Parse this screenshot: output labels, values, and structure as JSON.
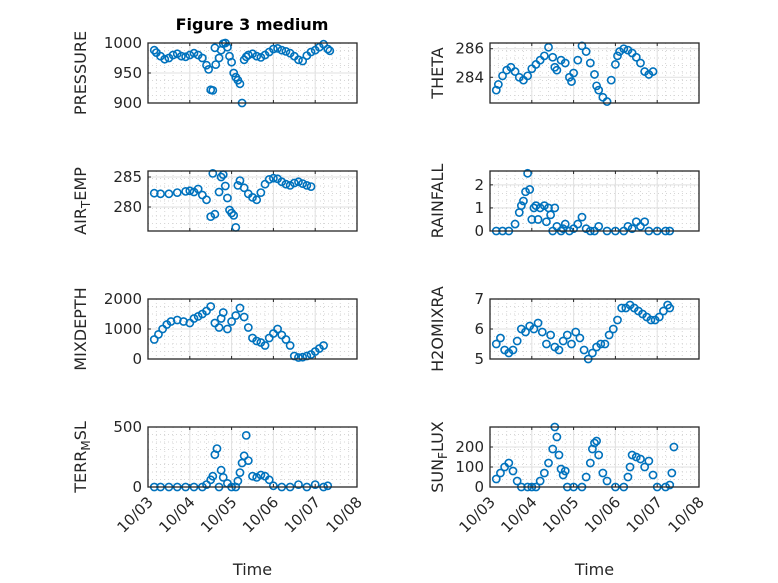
{
  "figure_title": "Figure 3 medium",
  "marker_color": "#0072BD",
  "chart_data": [
    {
      "type": "scatter",
      "title": "Figure 3 medium",
      "ylabel": "PRESSURE",
      "xlabel": "",
      "ylim": [
        900,
        1000
      ],
      "yticks": [
        "900",
        "950",
        "1000"
      ],
      "ytick_values": [
        900,
        950,
        1000
      ],
      "xlim": [
        0,
        5
      ],
      "xticks": [
        "10/03",
        "10/04",
        "10/05",
        "10/06",
        "10/07",
        "10/08"
      ],
      "show_xticklabels": false,
      "grid": true,
      "x": [
        0.15,
        0.2,
        0.3,
        0.4,
        0.5,
        0.6,
        0.7,
        0.8,
        0.9,
        1.0,
        1.1,
        1.2,
        1.3,
        1.4,
        1.45,
        1.5,
        1.55,
        1.6,
        1.62,
        1.7,
        1.75,
        1.8,
        1.85,
        1.9,
        1.95,
        2.0,
        2.05,
        2.1,
        2.15,
        2.2,
        2.25,
        2.3,
        2.35,
        2.4,
        2.5,
        2.6,
        2.7,
        2.8,
        2.9,
        3.0,
        3.1,
        3.2,
        3.3,
        3.4,
        3.5,
        3.6,
        3.7,
        3.8,
        3.9,
        4.0,
        4.1,
        4.2,
        4.3,
        4.35
      ],
      "y": [
        988,
        984,
        978,
        973,
        975,
        980,
        982,
        978,
        977,
        980,
        983,
        980,
        975,
        963,
        956,
        922,
        921,
        992,
        964,
        975,
        988,
        999,
        1000,
        993,
        978,
        968,
        950,
        943,
        938,
        932,
        900,
        972,
        977,
        980,
        982,
        978,
        976,
        980,
        985,
        990,
        991,
        988,
        986,
        983,
        978,
        972,
        970,
        979,
        985,
        988,
        993,
        998,
        990,
        987
      ]
    },
    {
      "type": "scatter",
      "ylabel": "THETA",
      "xlabel": "",
      "ylim": [
        282.2,
        286.4
      ],
      "yticks": [
        "284",
        "286"
      ],
      "ytick_values": [
        284,
        286
      ],
      "xlim": [
        0,
        5
      ],
      "xticks": [
        "10/03",
        "10/04",
        "10/05",
        "10/06",
        "10/07",
        "10/08"
      ],
      "show_xticklabels": false,
      "grid": true,
      "x": [
        0.15,
        0.2,
        0.3,
        0.4,
        0.5,
        0.6,
        0.7,
        0.8,
        0.9,
        1.0,
        1.1,
        1.2,
        1.3,
        1.4,
        1.5,
        1.55,
        1.6,
        1.7,
        1.8,
        1.9,
        1.95,
        2.0,
        2.1,
        2.2,
        2.3,
        2.4,
        2.5,
        2.55,
        2.6,
        2.7,
        2.8,
        2.9,
        3.0,
        3.05,
        3.1,
        3.2,
        3.3,
        3.4,
        3.5,
        3.6,
        3.7,
        3.8,
        3.9,
        4.0,
        4.1,
        4.2,
        4.3
      ],
      "y": [
        283.1,
        283.5,
        284.1,
        284.5,
        284.7,
        284.4,
        284.0,
        283.8,
        284.1,
        284.6,
        284.9,
        285.2,
        285.5,
        286.1,
        285.4,
        284.7,
        284.5,
        285.2,
        285.0,
        284.0,
        283.7,
        284.3,
        285.2,
        286.2,
        285.8,
        285.0,
        284.2,
        283.4,
        283.1,
        282.6,
        282.3,
        283.8,
        284.9,
        285.5,
        285.8,
        286.0,
        285.9,
        285.7,
        285.4,
        285.0,
        284.4,
        284.2,
        284.4,
        null,
        null,
        null,
        null
      ]
    },
    {
      "type": "scatter",
      "ylabel": "AIR_TEMP",
      "ylabel_display": "AIR",
      "ylabel_sub": "T",
      "ylabel_rest": "EMP",
      "xlabel": "",
      "ylim": [
        276,
        286
      ],
      "yticks": [
        "280",
        "285"
      ],
      "ytick_values": [
        280,
        285
      ],
      "xlim": [
        0,
        5
      ],
      "xticks": [
        "10/03",
        "10/04",
        "10/05",
        "10/06",
        "10/07",
        "10/08"
      ],
      "show_xticklabels": false,
      "grid": true,
      "x": [
        0.15,
        0.3,
        0.5,
        0.7,
        0.9,
        1.0,
        1.1,
        1.2,
        1.3,
        1.4,
        1.5,
        1.55,
        1.6,
        1.7,
        1.75,
        1.8,
        1.85,
        1.9,
        1.95,
        2.0,
        2.05,
        2.1,
        2.15,
        2.2,
        2.3,
        2.4,
        2.5,
        2.6,
        2.7,
        2.8,
        2.9,
        3.0,
        3.1,
        3.2,
        3.3,
        3.4,
        3.5,
        3.6,
        3.7,
        3.8,
        3.9,
        4.0,
        4.1,
        4.2,
        4.3
      ],
      "y": [
        282.3,
        282.2,
        282.2,
        282.4,
        282.6,
        282.7,
        282.5,
        283.0,
        282.0,
        281.2,
        278.4,
        285.6,
        278.8,
        282.5,
        285.0,
        285.4,
        283.5,
        281.5,
        279.5,
        279.0,
        278.6,
        276.6,
        283.6,
        284.4,
        283.2,
        282.2,
        281.6,
        281.2,
        282.4,
        283.8,
        284.6,
        284.8,
        284.7,
        284.2,
        283.8,
        283.6,
        284.0,
        284.2,
        283.9,
        283.6,
        283.4,
        null,
        null,
        null,
        null
      ]
    },
    {
      "type": "scatter",
      "ylabel": "RAINFALL",
      "xlabel": "",
      "ylim": [
        0,
        2.6
      ],
      "yticks": [
        "0",
        "1",
        "2"
      ],
      "ytick_values": [
        0,
        1,
        2
      ],
      "xlim": [
        0,
        5
      ],
      "xticks": [
        "10/03",
        "10/04",
        "10/05",
        "10/06",
        "10/07",
        "10/08"
      ],
      "show_xticklabels": false,
      "grid": true,
      "x": [
        0.15,
        0.3,
        0.45,
        0.6,
        0.7,
        0.75,
        0.8,
        0.85,
        0.9,
        0.95,
        1.0,
        1.05,
        1.1,
        1.15,
        1.2,
        1.3,
        1.35,
        1.4,
        1.45,
        1.5,
        1.55,
        1.6,
        1.7,
        1.75,
        1.8,
        1.9,
        2.0,
        2.1,
        2.2,
        2.3,
        2.4,
        2.5,
        2.6,
        2.8,
        3.0,
        3.2,
        3.3,
        3.4,
        3.5,
        3.6,
        3.7,
        3.8,
        4.0,
        4.2,
        4.3
      ],
      "y": [
        0,
        0,
        0,
        0.3,
        0.8,
        1.1,
        1.3,
        1.7,
        2.5,
        1.8,
        0.5,
        1.0,
        1.1,
        0.5,
        1.0,
        1.1,
        0.4,
        1.0,
        0.7,
        0,
        1.0,
        0.2,
        0,
        0.1,
        0.3,
        0,
        0.1,
        0.3,
        0.6,
        0.1,
        0,
        0,
        0.2,
        0,
        0,
        0,
        0.2,
        0.1,
        0.4,
        0.2,
        0.4,
        0,
        0,
        0,
        0
      ]
    },
    {
      "type": "scatter",
      "ylabel": "MIXDEPTH",
      "xlabel": "",
      "ylim": [
        0,
        2000
      ],
      "yticks": [
        "0",
        "1000",
        "2000"
      ],
      "ytick_values": [
        0,
        1000,
        2000
      ],
      "xlim": [
        0,
        5
      ],
      "xticks": [
        "10/03",
        "10/04",
        "10/05",
        "10/06",
        "10/07",
        "10/08"
      ],
      "show_xticklabels": false,
      "grid": true,
      "x": [
        0.15,
        0.25,
        0.35,
        0.45,
        0.55,
        0.7,
        0.85,
        1.0,
        1.1,
        1.2,
        1.3,
        1.4,
        1.5,
        1.6,
        1.7,
        1.75,
        1.8,
        1.9,
        2.0,
        2.1,
        2.2,
        2.3,
        2.4,
        2.5,
        2.6,
        2.7,
        2.8,
        2.9,
        3.0,
        3.1,
        3.2,
        3.3,
        3.4,
        3.5,
        3.6,
        3.7,
        3.8,
        3.9,
        4.0,
        4.1,
        4.2,
        4.3
      ],
      "y": [
        650,
        820,
        1000,
        1150,
        1250,
        1300,
        1250,
        1200,
        1350,
        1420,
        1500,
        1600,
        1750,
        1200,
        1050,
        1350,
        1550,
        1000,
        1250,
        1450,
        1700,
        1400,
        1050,
        700,
        600,
        550,
        450,
        700,
        850,
        1000,
        800,
        650,
        450,
        100,
        50,
        60,
        100,
        150,
        250,
        350,
        450,
        null
      ]
    },
    {
      "type": "scatter",
      "ylabel": "H2OMIXRA",
      "xlabel": "",
      "ylim": [
        5,
        7
      ],
      "yticks": [
        "5",
        "6",
        "7"
      ],
      "ytick_values": [
        5,
        6,
        7
      ],
      "xlim": [
        0,
        5
      ],
      "xticks": [
        "10/03",
        "10/04",
        "10/05",
        "10/06",
        "10/07",
        "10/08"
      ],
      "show_xticklabels": false,
      "grid": true,
      "x": [
        0.15,
        0.25,
        0.35,
        0.45,
        0.55,
        0.65,
        0.75,
        0.85,
        0.95,
        1.05,
        1.15,
        1.25,
        1.35,
        1.45,
        1.55,
        1.65,
        1.75,
        1.85,
        1.95,
        2.05,
        2.15,
        2.25,
        2.35,
        2.45,
        2.55,
        2.65,
        2.75,
        2.85,
        2.95,
        3.05,
        3.15,
        3.25,
        3.35,
        3.45,
        3.55,
        3.65,
        3.75,
        3.85,
        3.95,
        4.05,
        4.15,
        4.25,
        4.3
      ],
      "y": [
        5.5,
        5.7,
        5.3,
        5.2,
        5.3,
        5.6,
        6.0,
        5.9,
        6.1,
        6.0,
        6.2,
        5.9,
        5.5,
        5.8,
        5.4,
        5.3,
        5.6,
        5.8,
        5.5,
        5.9,
        5.7,
        5.3,
        5.0,
        5.2,
        5.4,
        5.5,
        5.5,
        5.8,
        6.0,
        6.3,
        6.7,
        6.7,
        6.8,
        6.7,
        6.6,
        6.5,
        6.4,
        6.3,
        6.3,
        6.4,
        6.6,
        6.8,
        6.7
      ]
    },
    {
      "type": "scatter",
      "ylabel": "TERR_MSL",
      "ylabel_display": "TERR",
      "ylabel_sub": "M",
      "ylabel_rest": "SL",
      "xlabel": "Time",
      "ylim": [
        0,
        500
      ],
      "yticks": [
        "0",
        "500"
      ],
      "ytick_values": [
        0,
        500
      ],
      "xlim": [
        0,
        5
      ],
      "xticks": [
        "10/03",
        "10/04",
        "10/05",
        "10/06",
        "10/07",
        "10/08"
      ],
      "show_xticklabels": true,
      "grid": true,
      "x": [
        0.15,
        0.3,
        0.5,
        0.7,
        0.9,
        1.1,
        1.3,
        1.4,
        1.5,
        1.55,
        1.6,
        1.65,
        1.7,
        1.75,
        1.8,
        1.9,
        2.0,
        2.1,
        2.15,
        2.2,
        2.25,
        2.3,
        2.35,
        2.4,
        2.5,
        2.6,
        2.7,
        2.8,
        2.9,
        3.0,
        3.2,
        3.4,
        3.6,
        3.8,
        4.0,
        4.2,
        4.3
      ],
      "y": [
        0,
        0,
        0,
        0,
        0,
        0,
        0,
        20,
        60,
        90,
        270,
        320,
        0,
        140,
        80,
        30,
        0,
        0,
        50,
        120,
        200,
        260,
        430,
        220,
        90,
        80,
        100,
        90,
        60,
        10,
        0,
        0,
        20,
        0,
        20,
        0,
        10
      ]
    },
    {
      "type": "scatter",
      "ylabel": "SUN_FLUX",
      "ylabel_display": "SUN",
      "ylabel_sub": "F",
      "ylabel_rest": "LUX",
      "xlabel": "Time",
      "ylim": [
        0,
        300
      ],
      "yticks": [
        "0",
        "100",
        "200"
      ],
      "ytick_values": [
        0,
        100,
        200
      ],
      "xlim": [
        0,
        5
      ],
      "xticks": [
        "10/03",
        "10/04",
        "10/05",
        "10/06",
        "10/07",
        "10/08"
      ],
      "show_xticklabels": true,
      "grid": true,
      "x": [
        0.15,
        0.25,
        0.35,
        0.45,
        0.55,
        0.65,
        0.75,
        0.9,
        1.0,
        1.1,
        1.2,
        1.3,
        1.4,
        1.5,
        1.55,
        1.6,
        1.65,
        1.7,
        1.75,
        1.8,
        1.85,
        2.0,
        2.2,
        2.3,
        2.4,
        2.45,
        2.5,
        2.55,
        2.6,
        2.7,
        2.8,
        3.0,
        3.2,
        3.3,
        3.35,
        3.4,
        3.5,
        3.6,
        3.7,
        3.8,
        3.9,
        4.0,
        4.2,
        4.3,
        4.35,
        4.4
      ],
      "y": [
        40,
        70,
        100,
        120,
        80,
        30,
        0,
        0,
        0,
        0,
        30,
        70,
        120,
        190,
        300,
        250,
        160,
        90,
        60,
        80,
        0,
        0,
        0,
        50,
        120,
        190,
        220,
        230,
        160,
        70,
        30,
        0,
        0,
        50,
        100,
        160,
        150,
        140,
        100,
        130,
        60,
        0,
        0,
        10,
        70,
        200
      ]
    }
  ],
  "x_axis_label": "Time"
}
